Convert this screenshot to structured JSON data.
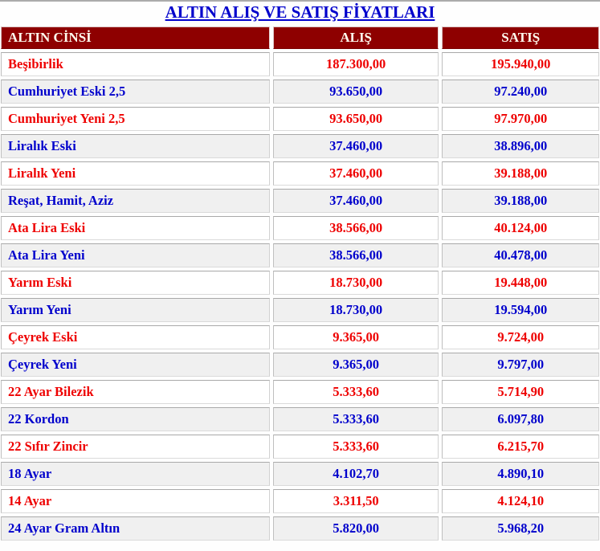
{
  "title": "ALTIN ALIŞ VE SATIŞ FİYATLARI",
  "colors": {
    "title_text": "#0000CC",
    "header_bg": "#8E0000",
    "header_text": "#FFFBEE",
    "row_red": "#EE0000",
    "row_blue": "#0000CC",
    "alt_row_bg": "#F0F0F0"
  },
  "chart_data": {
    "type": "table",
    "title": "ALTIN ALIŞ VE SATIŞ FİYATLARI",
    "columns": [
      "ALTIN CİNSİ",
      "ALIŞ",
      "SATIŞ"
    ],
    "legend_note": "odd rows red text on white, even rows blue text on light gray",
    "rows": [
      {
        "name": "Beşibirlik",
        "buy": "187.300,00",
        "sell": "195.940,00"
      },
      {
        "name": "Cumhuriyet Eski 2,5",
        "buy": "93.650,00",
        "sell": "97.240,00"
      },
      {
        "name": "Cumhuriyet Yeni 2,5",
        "buy": "93.650,00",
        "sell": "97.970,00"
      },
      {
        "name": "Liralık Eski",
        "buy": "37.460,00",
        "sell": "38.896,00"
      },
      {
        "name": "Liralık Yeni",
        "buy": "37.460,00",
        "sell": "39.188,00"
      },
      {
        "name": "Reşat, Hamit, Aziz",
        "buy": "37.460,00",
        "sell": "39.188,00"
      },
      {
        "name": "Ata Lira Eski",
        "buy": "38.566,00",
        "sell": "40.124,00"
      },
      {
        "name": "Ata Lira Yeni",
        "buy": "38.566,00",
        "sell": "40.478,00"
      },
      {
        "name": "Yarım Eski",
        "buy": "18.730,00",
        "sell": "19.448,00"
      },
      {
        "name": "Yarım Yeni",
        "buy": "18.730,00",
        "sell": "19.594,00"
      },
      {
        "name": "Çeyrek Eski",
        "buy": "9.365,00",
        "sell": "9.724,00"
      },
      {
        "name": "Çeyrek Yeni",
        "buy": "9.365,00",
        "sell": "9.797,00"
      },
      {
        "name": "22 Ayar Bilezik",
        "buy": "5.333,60",
        "sell": "5.714,90"
      },
      {
        "name": "22 Kordon",
        "buy": "5.333,60",
        "sell": "6.097,80"
      },
      {
        "name": "22 Sıfır Zincir",
        "buy": "5.333,60",
        "sell": "6.215,70"
      },
      {
        "name": "18 Ayar",
        "buy": "4.102,70",
        "sell": "4.890,10"
      },
      {
        "name": "14 Ayar",
        "buy": "3.311,50",
        "sell": "4.124,10"
      },
      {
        "name": "24 Ayar Gram Altın",
        "buy": "5.820,00",
        "sell": "5.968,20"
      }
    ]
  }
}
